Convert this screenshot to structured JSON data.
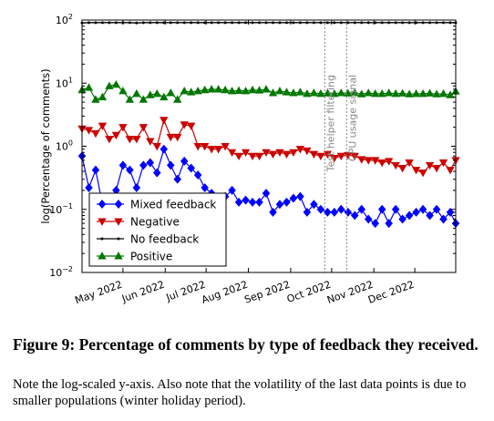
{
  "figure": {
    "caption_title": "Figure 9: Percentage of comments by type of feedback they received.",
    "caption_note": "Note the log-scaled y-axis. Also note that the volatility of the last data points is due to smaller populations (winter holiday period)."
  },
  "chart_data": {
    "type": "line",
    "title": "",
    "xlabel": "",
    "ylabel": "log(Percentage of comments)",
    "y_scale": "log",
    "ylim": [
      0.01,
      100
    ],
    "xlim": [
      "2022-04-01",
      "2022-12-31"
    ],
    "y_ticks": [
      {
        "value": 0.01,
        "base": "10",
        "exp": "−2"
      },
      {
        "value": 0.1,
        "base": "10",
        "exp": "−1"
      },
      {
        "value": 1,
        "base": "10",
        "exp": "0"
      },
      {
        "value": 10,
        "base": "10",
        "exp": "1"
      },
      {
        "value": 100,
        "base": "10",
        "exp": "2"
      }
    ],
    "x_ticks": [
      {
        "date": "2022-05-01",
        "label": "May 2022"
      },
      {
        "date": "2022-06-01",
        "label": "Jun 2022"
      },
      {
        "date": "2022-07-01",
        "label": "Jul 2022"
      },
      {
        "date": "2022-08-01",
        "label": "Aug 2022"
      },
      {
        "date": "2022-09-01",
        "label": "Sep 2022"
      },
      {
        "date": "2022-10-01",
        "label": "Oct 2022"
      },
      {
        "date": "2022-11-01",
        "label": "Nov 2022"
      },
      {
        "date": "2022-12-01",
        "label": "Dec 2022"
      }
    ],
    "grid": false,
    "legend_position": "bottom-left",
    "annotations": [
      {
        "type": "vline",
        "date": "2022-09-26",
        "label": "Test helper filtering"
      },
      {
        "type": "vline",
        "date": "2022-10-12",
        "label": "CPU usage signal"
      }
    ],
    "x": [
      "2022-04-01",
      "2022-04-06",
      "2022-04-11",
      "2022-04-16",
      "2022-04-21",
      "2022-04-26",
      "2022-05-01",
      "2022-05-06",
      "2022-05-11",
      "2022-05-16",
      "2022-05-21",
      "2022-05-26",
      "2022-05-31",
      "2022-06-05",
      "2022-06-10",
      "2022-06-15",
      "2022-06-20",
      "2022-06-25",
      "2022-06-30",
      "2022-07-05",
      "2022-07-10",
      "2022-07-15",
      "2022-07-20",
      "2022-07-25",
      "2022-07-30",
      "2022-08-04",
      "2022-08-09",
      "2022-08-14",
      "2022-08-19",
      "2022-08-24",
      "2022-08-29",
      "2022-09-03",
      "2022-09-08",
      "2022-09-13",
      "2022-09-18",
      "2022-09-23",
      "2022-09-28",
      "2022-10-03",
      "2022-10-08",
      "2022-10-13",
      "2022-10-18",
      "2022-10-23",
      "2022-10-28",
      "2022-11-02",
      "2022-11-07",
      "2022-11-12",
      "2022-11-17",
      "2022-11-22",
      "2022-11-27",
      "2022-12-02",
      "2022-12-07",
      "2022-12-12",
      "2022-12-17",
      "2022-12-22",
      "2022-12-27",
      "2022-12-31"
    ],
    "series": [
      {
        "name": "Mixed feedback",
        "color": "#0000ff",
        "marker": "diamond",
        "values": [
          0.7,
          0.22,
          0.42,
          0.12,
          0.08,
          0.2,
          0.5,
          0.42,
          0.22,
          0.5,
          0.55,
          0.38,
          0.9,
          0.5,
          0.3,
          0.58,
          0.45,
          0.35,
          0.22,
          0.18,
          0.12,
          0.16,
          0.2,
          0.13,
          0.14,
          0.13,
          0.13,
          0.18,
          0.09,
          0.12,
          0.13,
          0.15,
          0.16,
          0.09,
          0.12,
          0.1,
          0.09,
          0.09,
          0.1,
          0.09,
          0.08,
          0.1,
          0.07,
          0.06,
          0.1,
          0.06,
          0.1,
          0.07,
          0.08,
          0.09,
          0.1,
          0.08,
          0.1,
          0.07,
          0.09,
          0.06
        ]
      },
      {
        "name": "Negative",
        "color": "#cc0000",
        "marker": "triangle-down",
        "values": [
          1.9,
          1.8,
          1.6,
          2.1,
          1.3,
          1.5,
          2.0,
          1.3,
          1.3,
          2.0,
          1.2,
          1.0,
          2.6,
          1.4,
          1.4,
          2.2,
          2.1,
          1.0,
          1.0,
          0.9,
          0.9,
          1.0,
          0.8,
          0.7,
          0.8,
          0.7,
          0.7,
          0.8,
          0.75,
          0.8,
          0.75,
          0.8,
          0.9,
          0.85,
          0.75,
          0.7,
          0.75,
          0.65,
          0.7,
          0.72,
          0.7,
          0.62,
          0.6,
          0.6,
          0.55,
          0.58,
          0.5,
          0.45,
          0.55,
          0.42,
          0.38,
          0.5,
          0.45,
          0.55,
          0.42,
          0.6
        ]
      },
      {
        "name": "No feedback",
        "color": "#000000",
        "marker": "dot",
        "values": [
          90,
          91,
          91,
          91,
          91,
          91,
          91,
          91,
          90,
          91,
          91,
          91,
          91,
          91,
          91,
          91,
          91,
          91,
          91,
          91,
          91,
          91,
          91,
          91,
          91,
          91,
          91,
          91,
          91,
          91,
          91,
          91,
          91,
          91,
          91,
          91,
          91,
          91,
          91,
          91,
          91,
          91,
          91,
          91,
          91,
          91,
          91,
          91,
          91,
          91,
          91,
          91,
          91,
          91,
          91,
          91
        ]
      },
      {
        "name": "Positive",
        "color": "#007700",
        "marker": "triangle-up",
        "values": [
          7.8,
          8.5,
          5.5,
          6.0,
          9.0,
          9.5,
          7.5,
          5.5,
          6.8,
          5.5,
          6.5,
          6.8,
          6.0,
          7.0,
          5.5,
          7.5,
          7.2,
          7.5,
          7.8,
          8.0,
          8.0,
          7.8,
          7.5,
          7.6,
          7.5,
          7.8,
          7.7,
          8.0,
          7.0,
          7.5,
          7.2,
          7.0,
          7.2,
          6.8,
          7.0,
          6.8,
          6.9,
          6.8,
          7.0,
          6.9,
          7.0,
          6.7,
          7.0,
          6.8,
          6.8,
          7.0,
          6.8,
          6.9,
          6.7,
          6.8,
          6.8,
          6.9,
          6.7,
          6.8,
          6.5,
          7.4
        ]
      }
    ]
  }
}
